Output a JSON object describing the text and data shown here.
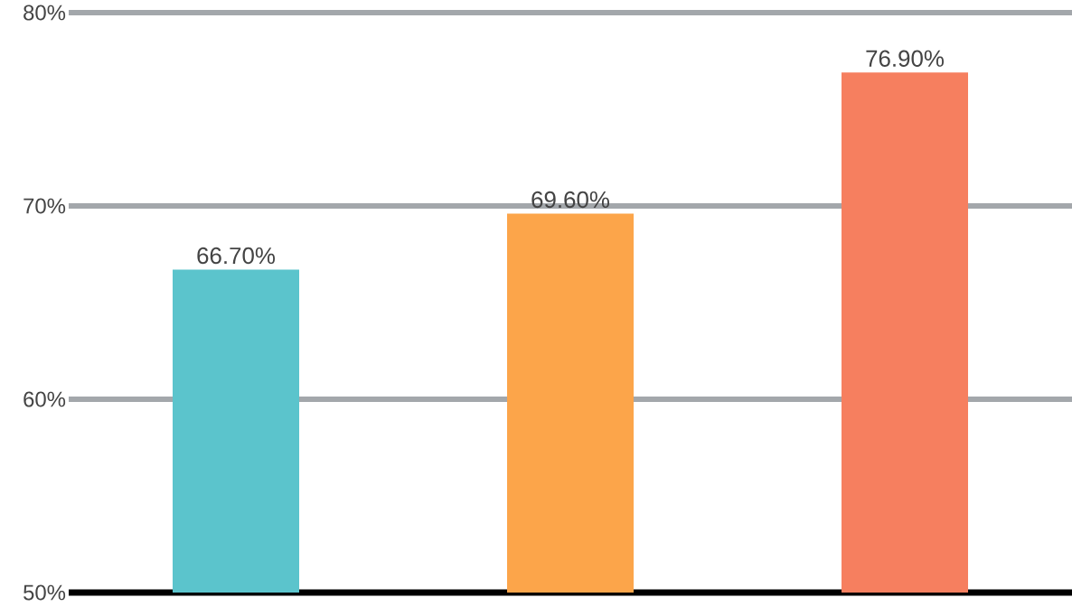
{
  "chart_data": {
    "type": "bar",
    "categories": [
      null,
      null,
      null
    ],
    "values": [
      66.7,
      69.6,
      76.9
    ],
    "colors": [
      "#5bc4cc",
      "#fca54a",
      "#f67f5f"
    ],
    "value_labels": [
      "66.70%",
      "69.60%",
      "76.90%"
    ],
    "ylim": [
      50,
      80
    ],
    "yticks": [
      {
        "value": 50,
        "label": "50%"
      },
      {
        "value": 60,
        "label": "60%"
      },
      {
        "value": 70,
        "label": "70%"
      },
      {
        "value": 80,
        "label": "80%"
      }
    ],
    "grid": "y"
  }
}
